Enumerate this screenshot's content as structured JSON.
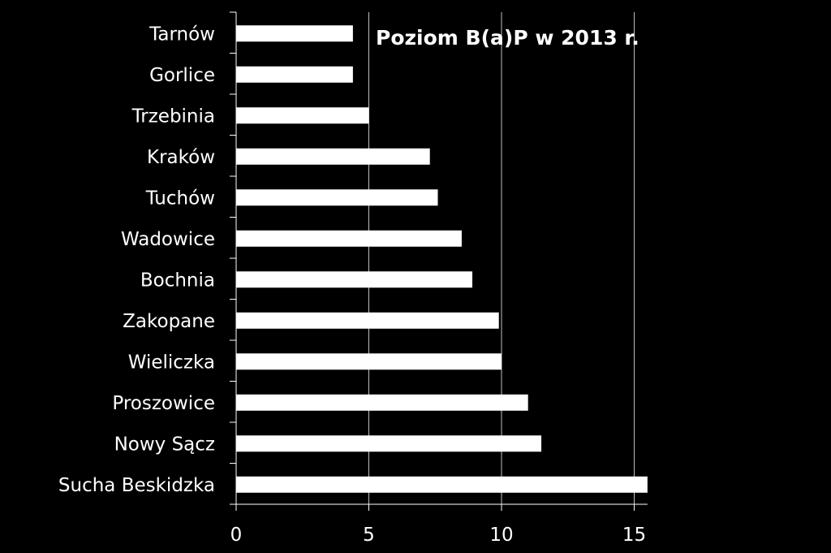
{
  "chart_data": {
    "type": "bar",
    "orientation": "horizontal",
    "title": "Poziom B(a)P w 2013 r.",
    "categories": [
      "Tarnów",
      "Gorlice",
      "Trzebinia",
      "Kraków",
      "Tuchów",
      "Wadowice",
      "Bochnia",
      "Zakopane",
      "Wieliczka",
      "Proszowice",
      "Nowy Sącz",
      "Sucha Beskidzka"
    ],
    "values": [
      4.4,
      4.4,
      5.0,
      7.3,
      7.6,
      8.5,
      8.9,
      9.9,
      10.0,
      11.0,
      11.5,
      15.5
    ],
    "xlim": [
      0,
      15.5
    ],
    "xticks": [
      "0",
      "5",
      "10",
      "15"
    ],
    "xlabel": "",
    "ylabel": "",
    "grid": "vertical",
    "legend": "none",
    "colors": {
      "background": "#000000",
      "bar": "#ffffff",
      "text": "#ffffff",
      "grid": "#bfbfbf"
    }
  }
}
